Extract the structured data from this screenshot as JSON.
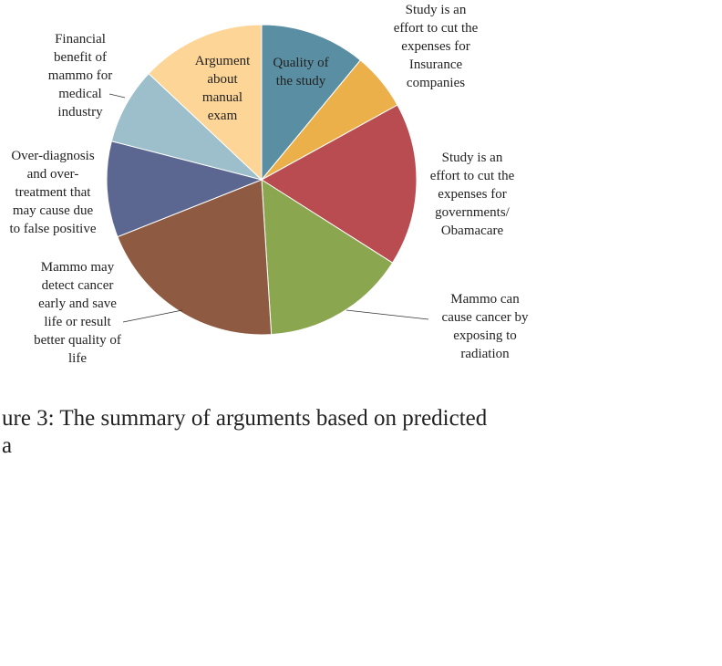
{
  "chart_data": {
    "type": "pie",
    "categories": [
      "Quality of\nthe study",
      "Study is an\neffort to cut the\nexpenses for\nInsurance\ncompanies",
      "Study is an\neffort to cut the\nexpenses for\ngovernments/\nObamacare",
      "Mammo can\ncause cancer by\nexposing to\nradiation",
      "Mammo may\ndetect cancer\nearly and save\nlife or result\nbetter quality of\nlife",
      "Over-diagnosis\nand over-\ntreatment that\nmay cause due\nto false positive",
      "Financial\nbenefit of\nmammo for\nmedical\nindustry",
      "Argument\nabout\nmanual\nexam"
    ],
    "values": [
      11,
      6,
      17,
      15,
      20,
      10,
      8,
      13
    ],
    "colors": [
      "#5a8fa3",
      "#ebb04a",
      "#b94c50",
      "#8aa64e",
      "#8e5a42",
      "#5b6790",
      "#9dbfcc",
      "#fdd597"
    ]
  },
  "caption": [
    "ure 3: The summary of arguments based on predicted",
    "a"
  ]
}
